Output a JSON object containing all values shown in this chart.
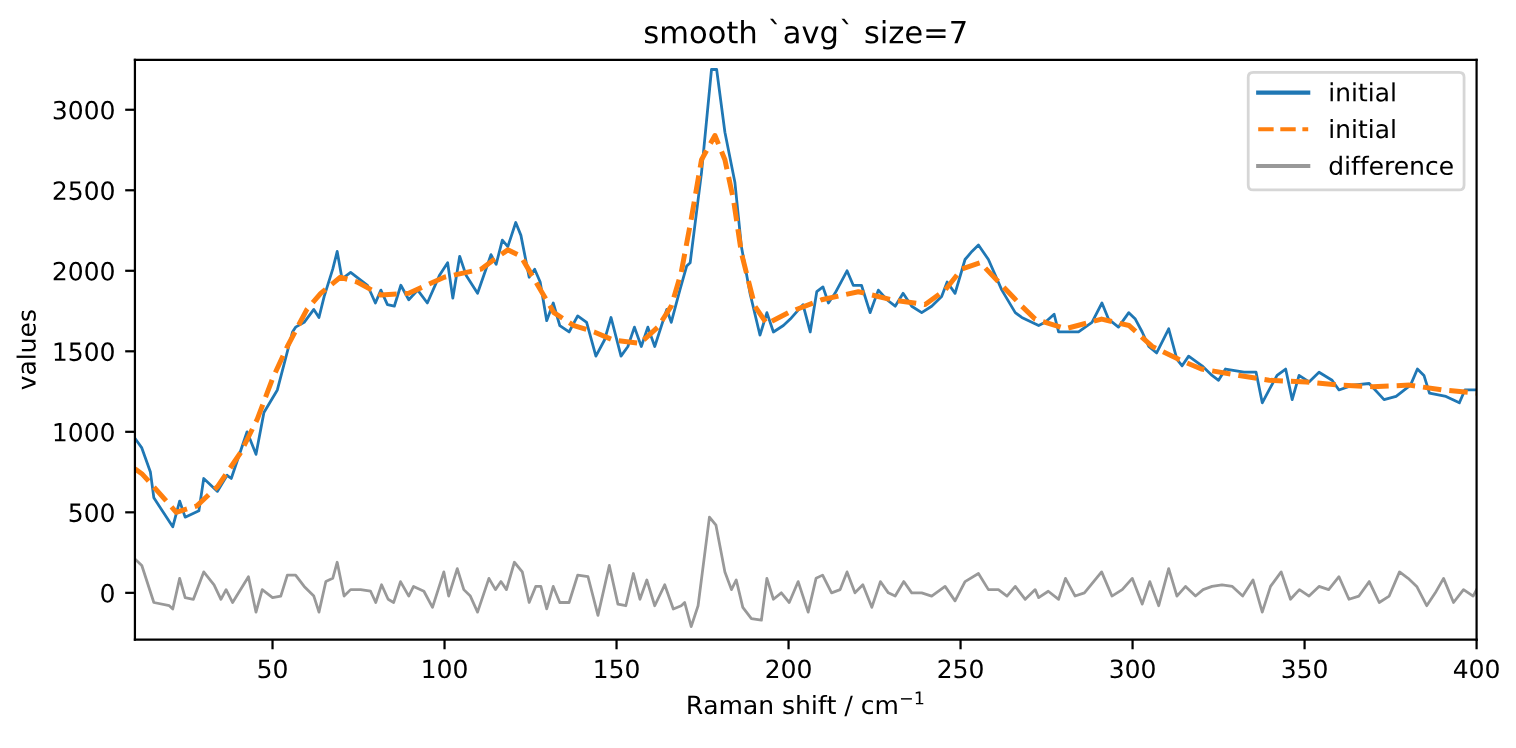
{
  "chart_data": {
    "type": "line",
    "title": "smooth `avg` size=7",
    "xlabel": "Raman shift / cm$^{−1}$",
    "ylabel": "values",
    "xlim": [
      10,
      400
    ],
    "ylim": [
      -290,
      3310
    ],
    "xticks": [
      50,
      100,
      150,
      200,
      250,
      300,
      350,
      400
    ],
    "yticks": [
      0,
      500,
      1000,
      1500,
      2000,
      2500,
      3000
    ],
    "grid": false,
    "legend": "top right",
    "marker": "none",
    "series": [
      {
        "name": "initial",
        "color": "#1f77b4",
        "line_style": "solid",
        "x": [
          10,
          12,
          14.5,
          15.5,
          21,
          23,
          24.6,
          28.6,
          30,
          34,
          36.8,
          38,
          42.6,
          45.2,
          47.5,
          51.4,
          55.8,
          56.7,
          59.2,
          62,
          63.5,
          65,
          67.5,
          68.8,
          70.2,
          72.7,
          77.6,
          79.9,
          81.5,
          83.4,
          85.4,
          87.3,
          89.6,
          92.2,
          95,
          98.5,
          100.9,
          102.4,
          104.4,
          106.3,
          109.6,
          113.5,
          115,
          116.8,
          118.4,
          120.7,
          122.2,
          124.6,
          126.2,
          127.8,
          129.7,
          131.6,
          133.5,
          136.2,
          138.7,
          141.3,
          144,
          146.5,
          148.4,
          151.3,
          153.3,
          155.2,
          157.2,
          159.1,
          161.1,
          164.6,
          165.9,
          168.4,
          170.4,
          171.4,
          174.7,
          177.6,
          179.1,
          181.5,
          184.4,
          186.3,
          188.8,
          191.7,
          193.7,
          195.6,
          198.5,
          200.5,
          204.2,
          206.3,
          208.2,
          210,
          211.6,
          213.5,
          217,
          218.8,
          221.2,
          223.7,
          226.1,
          228.6,
          231,
          233.3,
          235.8,
          238.7,
          241.6,
          244.5,
          246.1,
          248.4,
          251.3,
          253.3,
          255.2,
          258.1,
          262,
          265.9,
          267.8,
          272.7,
          274.6,
          277.2,
          278.5,
          284.3,
          288.2,
          291.1,
          293,
          295.9,
          298.9,
          300.8,
          302.8,
          304.7,
          307,
          310.5,
          312.9,
          314.4,
          316.3,
          320.2,
          323.1,
          325,
          327,
          332.4,
          335.9,
          337.7,
          339.7,
          342,
          344.5,
          346.4,
          348.4,
          351.3,
          354.2,
          358,
          360,
          364,
          368.8,
          373.1,
          376.6,
          380.8,
          382.8,
          384.7,
          386.3,
          391.1,
          395,
          396.6,
          400
        ],
        "values": [
          960,
          900,
          750,
          590,
          410,
          570,
          470,
          510,
          710,
          630,
          730,
          710,
          1000,
          860,
          1120,
          1260,
          1620,
          1650,
          1680,
          1760,
          1710,
          1840,
          2010,
          2120,
          1950,
          1990,
          1910,
          1800,
          1880,
          1790,
          1780,
          1910,
          1820,
          1880,
          1800,
          1970,
          2050,
          1830,
          2090,
          1970,
          1860,
          2100,
          2040,
          2190,
          2150,
          2300,
          2220,
          1960,
          2010,
          1930,
          1690,
          1800,
          1660,
          1620,
          1720,
          1680,
          1470,
          1570,
          1710,
          1470,
          1530,
          1650,
          1530,
          1650,
          1530,
          1760,
          1680,
          1880,
          2030,
          2050,
          2610,
          3250,
          3250,
          2860,
          2550,
          2150,
          1860,
          1600,
          1740,
          1620,
          1660,
          1700,
          1790,
          1620,
          1870,
          1900,
          1800,
          1860,
          2000,
          1910,
          1910,
          1740,
          1880,
          1820,
          1780,
          1860,
          1780,
          1740,
          1780,
          1840,
          1930,
          1860,
          2070,
          2120,
          2160,
          2070,
          1880,
          1740,
          1710,
          1660,
          1680,
          1730,
          1620,
          1620,
          1680,
          1800,
          1700,
          1650,
          1740,
          1700,
          1620,
          1530,
          1490,
          1640,
          1450,
          1410,
          1470,
          1410,
          1350,
          1320,
          1390,
          1370,
          1370,
          1180,
          1260,
          1350,
          1390,
          1200,
          1350,
          1310,
          1370,
          1320,
          1260,
          1290,
          1300,
          1200,
          1220,
          1290,
          1390,
          1350,
          1240,
          1220,
          1180,
          1260,
          1260
        ]
      },
      {
        "name": "initial",
        "color": "#ff7f0e",
        "line_style": "dashed",
        "x": [
          10,
          12,
          15,
          22,
          28,
          34,
          40.7,
          45.6,
          50,
          54.3,
          60,
          64,
          69.7,
          74.6,
          81.5,
          89.6,
          99.9,
          110.6,
          114.4,
          118.4,
          122.2,
          126,
          131.8,
          137.6,
          143.5,
          149,
          156.8,
          162,
          165.9,
          168.8,
          171.7,
          174.7,
          178.6,
          181.5,
          184,
          186.3,
          190.2,
          193.7,
          199.9,
          209.6,
          220.3,
          230,
          239.7,
          245.5,
          250.3,
          255.7,
          262,
          267.8,
          271.7,
          280.5,
          291,
          299,
          305.7,
          313.4,
          320,
          331,
          339.7,
          350.4,
          360,
          369.8,
          380.5,
          390,
          400
        ],
        "values": [
          770,
          740,
          670,
          500,
          540,
          660,
          870,
          1080,
          1330,
          1530,
          1760,
          1860,
          1960,
          1930,
          1850,
          1860,
          1960,
          2010,
          2070,
          2130,
          2090,
          1950,
          1740,
          1660,
          1620,
          1570,
          1550,
          1650,
          1780,
          1990,
          2320,
          2690,
          2840,
          2690,
          2440,
          2110,
          1780,
          1670,
          1740,
          1820,
          1870,
          1820,
          1790,
          1880,
          2010,
          2050,
          1910,
          1780,
          1700,
          1640,
          1700,
          1660,
          1530,
          1450,
          1390,
          1350,
          1320,
          1310,
          1290,
          1280,
          1290,
          1260,
          1240
        ]
      },
      {
        "name": "difference",
        "color": "#999999",
        "line_style": "solid",
        "x": [
          10,
          12,
          15.5,
          20,
          21,
          23,
          24.6,
          27,
          30,
          33,
          35,
          36.5,
          38.4,
          40.4,
          43,
          45.2,
          47,
          50,
          52.4,
          54.3,
          56.7,
          59.2,
          62,
          63.5,
          65.5,
          67.5,
          68.8,
          70.8,
          72.7,
          75.6,
          78.5,
          80,
          81.7,
          83.6,
          85.2,
          87.2,
          89.6,
          91,
          94,
          96.5,
          99.8,
          101.2,
          103.7,
          105.6,
          107.5,
          109.6,
          112.9,
          114.8,
          116.4,
          118,
          120.3,
          122.6,
          124.6,
          126.5,
          128,
          129.7,
          131.6,
          133.5,
          136.2,
          138.7,
          141.7,
          144.6,
          147.9,
          150.4,
          152.7,
          154.9,
          156.8,
          158.8,
          161.1,
          164,
          166.5,
          168.8,
          169.8,
          171.7,
          173.7,
          177,
          178.9,
          181.5,
          183.4,
          184.8,
          186.7,
          189.2,
          192.1,
          193.7,
          195.6,
          197.9,
          200.2,
          202.8,
          205.7,
          208,
          209.9,
          212.5,
          215,
          217,
          219.3,
          221.6,
          224.2,
          226.7,
          229,
          231,
          233.5,
          235.8,
          238.7,
          241.6,
          245.5,
          248.4,
          251.3,
          255.2,
          258.1,
          261,
          263.5,
          265.9,
          268.8,
          271.7,
          272.7,
          275.5,
          278.5,
          280.5,
          283.3,
          286,
          291,
          294,
          297,
          299.9,
          302.8,
          305,
          307.6,
          310.5,
          312.9,
          315.4,
          318.3,
          320.5,
          323.1,
          326,
          329,
          332,
          335,
          337.7,
          340.1,
          343.2,
          345.9,
          348.5,
          351.3,
          354.2,
          357,
          360,
          362.9,
          365.8,
          368.8,
          371.7,
          374.6,
          377.6,
          380.1,
          382.6,
          385.5,
          388,
          390.4,
          393.3,
          396.2,
          399,
          400
        ],
        "values": [
          210,
          170,
          -60,
          -80,
          -100,
          90,
          -30,
          -40,
          130,
          50,
          -40,
          20,
          -60,
          10,
          100,
          -120,
          20,
          -30,
          -20,
          110,
          110,
          40,
          -20,
          -120,
          70,
          90,
          190,
          -20,
          20,
          20,
          10,
          -60,
          50,
          -40,
          -60,
          70,
          -20,
          40,
          10,
          -90,
          130,
          -20,
          150,
          20,
          -20,
          -120,
          90,
          20,
          70,
          20,
          190,
          130,
          -60,
          40,
          40,
          -100,
          40,
          -60,
          -60,
          110,
          100,
          -140,
          170,
          -70,
          -80,
          120,
          -40,
          80,
          -80,
          50,
          -100,
          -80,
          -60,
          -210,
          -80,
          470,
          420,
          130,
          20,
          80,
          -90,
          -160,
          -170,
          90,
          -40,
          0,
          -60,
          70,
          -120,
          90,
          110,
          0,
          20,
          130,
          0,
          50,
          -90,
          70,
          0,
          -20,
          70,
          0,
          0,
          -20,
          40,
          -50,
          70,
          120,
          20,
          20,
          -20,
          40,
          -40,
          20,
          -30,
          10,
          -40,
          90,
          -20,
          0,
          130,
          -20,
          20,
          90,
          -70,
          70,
          -80,
          150,
          -20,
          40,
          -20,
          20,
          40,
          50,
          40,
          -20,
          80,
          -120,
          40,
          130,
          -40,
          20,
          -20,
          40,
          20,
          100,
          -40,
          -20,
          70,
          -60,
          -20,
          130,
          90,
          40,
          -80,
          0,
          90,
          -60,
          20,
          -20,
          20
        ]
      }
    ]
  }
}
